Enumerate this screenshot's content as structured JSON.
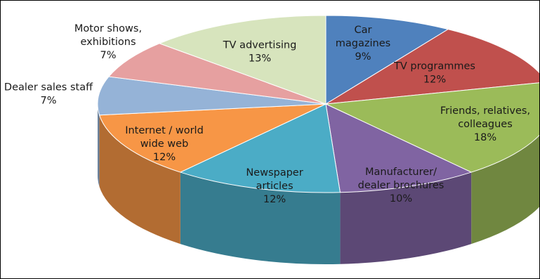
{
  "chart_data": {
    "type": "pie",
    "style": "3d-exploded-free",
    "slices": [
      {
        "name": "Car magazines",
        "label_lines": [
          "Car",
          "magazines",
          "9%"
        ],
        "value": 9,
        "color": "#4F81BD"
      },
      {
        "name": "TV programmes",
        "label_lines": [
          "TV programmes",
          "12%"
        ],
        "value": 12,
        "color": "#C0504D"
      },
      {
        "name": "Friends, relatives, colleagues",
        "label_lines": [
          "Friends, relatives,",
          "colleagues",
          "18%"
        ],
        "value": 18,
        "color": "#9BBB59"
      },
      {
        "name": "Manufacturer/ dealer brochures",
        "label_lines": [
          "Manufacturer/",
          "dealer brochures",
          "10%"
        ],
        "value": 10,
        "color": "#8064A2"
      },
      {
        "name": "Newspaper articles",
        "label_lines": [
          "Newspaper",
          "articles",
          "12%"
        ],
        "value": 12,
        "color": "#4BACC6"
      },
      {
        "name": "Internet / world wide web",
        "label_lines": [
          "Internet / world",
          "wide web",
          "12%"
        ],
        "value": 12,
        "color": "#F79646"
      },
      {
        "name": "Dealer sales staff",
        "label_lines": [
          "Dealer sales staff",
          "7%"
        ],
        "value": 7,
        "color": "#95B3D7"
      },
      {
        "name": "Motor shows, exhibitions",
        "label_lines": [
          "Motor shows,",
          "exhibitions",
          "7%"
        ],
        "value": 7,
        "color": "#E6A0A0"
      },
      {
        "name": "TV advertising",
        "label_lines": [
          "TV advertising",
          "13%"
        ],
        "value": 13,
        "color": "#D7E4BD"
      }
    ],
    "legend": "none"
  }
}
